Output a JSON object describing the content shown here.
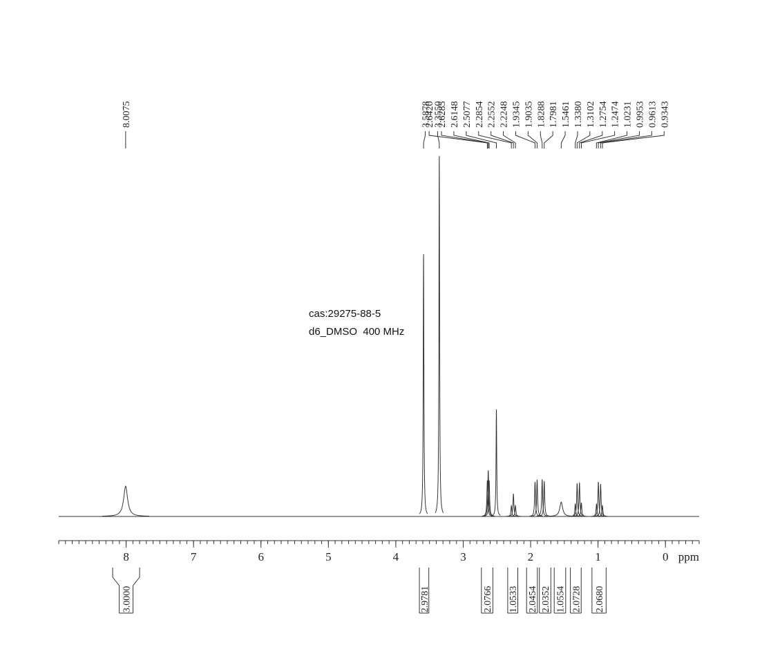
{
  "chart_data": {
    "type": "nmr",
    "color": "#333333",
    "x": [
      8.0075,
      3.5878,
      3.355,
      2.642,
      2.6285,
      2.6148,
      2.5077,
      2.2854,
      2.2552,
      2.2248,
      1.9345,
      1.9035,
      1.8288,
      1.7981,
      1.5461,
      1.338,
      1.3102,
      1.2754,
      1.2474,
      1.0231,
      0.9953,
      0.9613,
      0.9343
    ],
    "x_labels": [
      "8.0075",
      "3.5878",
      "3.3550",
      "2.6420",
      "2.6285",
      "2.6148",
      "2.5077",
      "2.2854",
      "2.2552",
      "2.2248",
      "1.9345",
      "1.9035",
      "1.8288",
      "1.7981",
      "1.5461",
      "1.3380",
      "1.3102",
      "1.2754",
      "1.2474",
      "1.0231",
      "0.9953",
      "0.9613",
      "0.9343"
    ],
    "values": [
      8.4,
      72.8,
      100,
      10,
      12.8,
      10,
      29.7,
      3,
      6.3,
      3,
      9.6,
      10.2,
      10.3,
      9.8,
      4,
      3.4,
      9.2,
      9.4,
      3.8,
      3.4,
      9.6,
      9,
      3
    ],
    "widths": [
      0.035,
      0.006,
      0.006,
      0.008,
      0.008,
      0.008,
      0.006,
      0.008,
      0.008,
      0.008,
      0.008,
      0.008,
      0.008,
      0.008,
      0.025,
      0.008,
      0.008,
      0.008,
      0.008,
      0.008,
      0.008,
      0.008,
      0.008
    ],
    "ylim": [
      0,
      100
    ],
    "xlim": [
      9,
      -0.5
    ],
    "xticks": [
      8,
      7,
      6,
      5,
      4,
      3,
      2,
      1,
      0
    ],
    "xminor": 0.1,
    "x_label": "ppm",
    "annotations": [
      "cas:29275-88-5",
      "d6_DMSO  400 MHz"
    ],
    "integrals": {
      "values": [
        3,
        2.9781,
        2.0766,
        1.0533,
        2.0454,
        2.0352,
        1.0554,
        2.0728,
        2.068
      ],
      "value_labels": [
        "3.0000",
        "2.9781",
        "2.0766",
        "1.0533",
        "2.0454",
        "2.0352",
        "1.0554",
        "2.0728",
        "2.0680"
      ],
      "ranges": [
        [
          8.2,
          7.8
        ],
        [
          3.65,
          3.51
        ],
        [
          2.73,
          2.56
        ],
        [
          2.34,
          2.19
        ],
        [
          2.06,
          1.9
        ],
        [
          1.87,
          1.7
        ],
        [
          1.65,
          1.48
        ],
        [
          1.41,
          1.25
        ],
        [
          1.09,
          0.88
        ]
      ]
    }
  }
}
